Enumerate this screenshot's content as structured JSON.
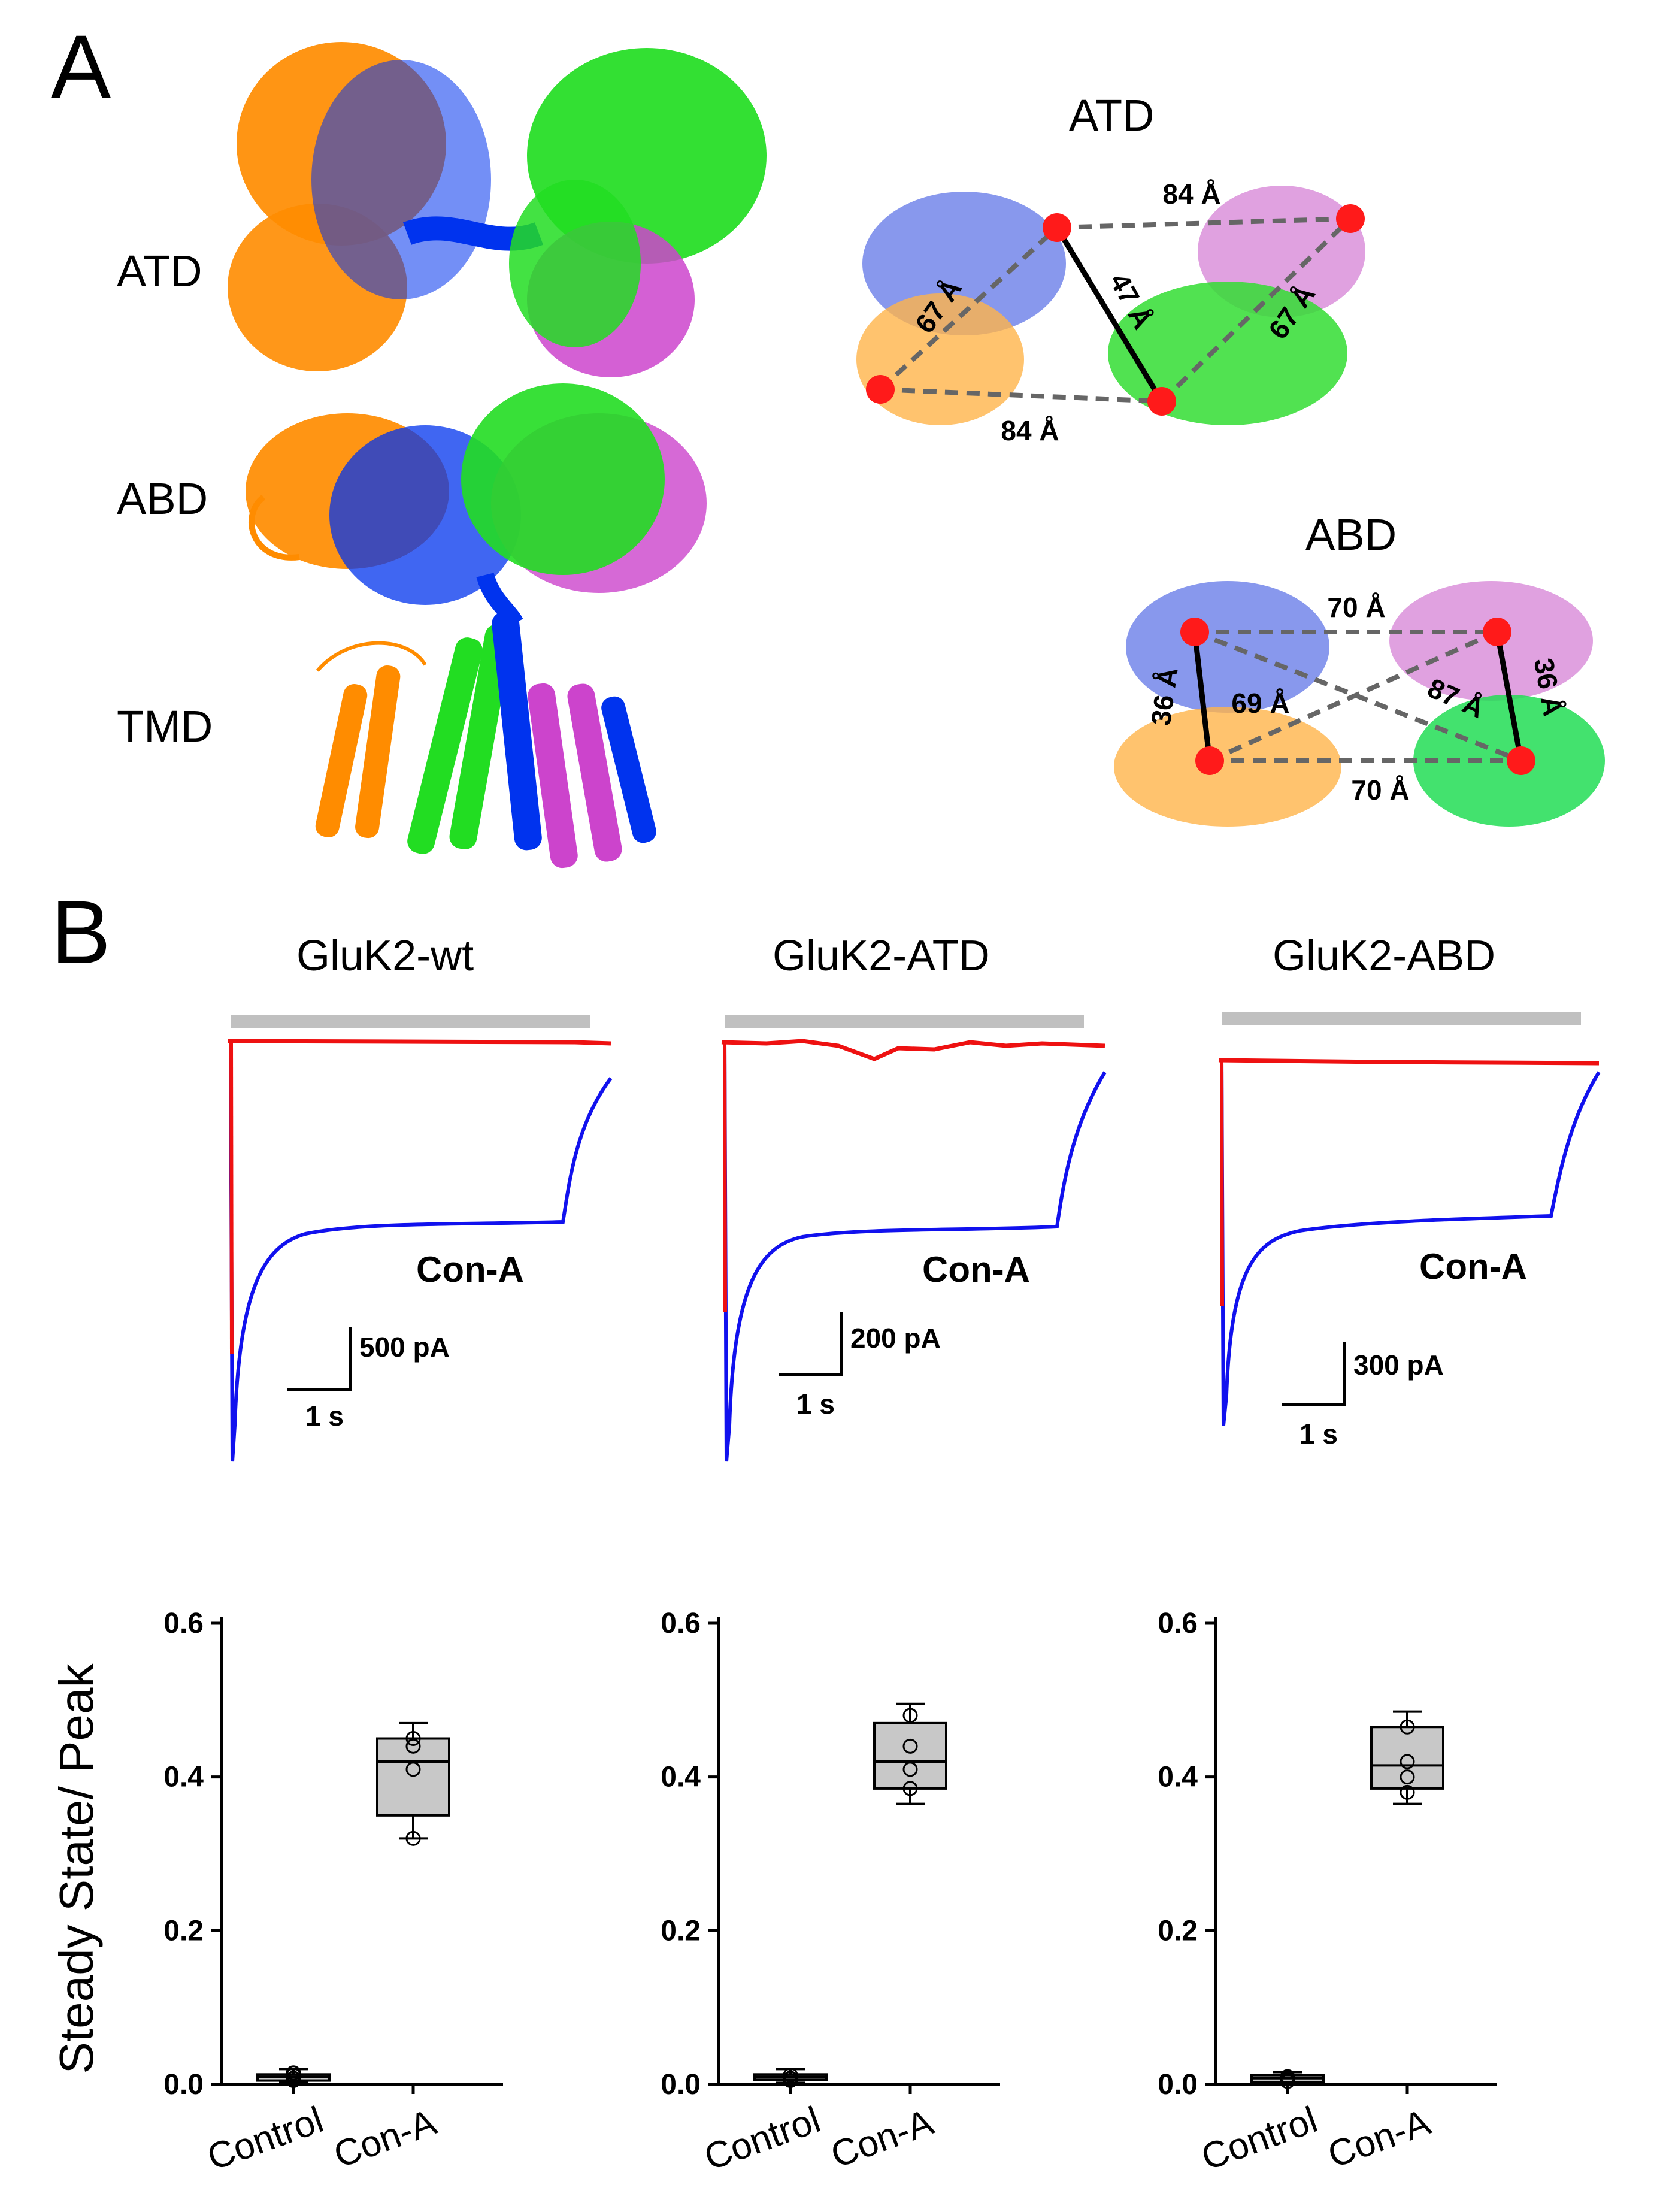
{
  "figure": {
    "panel_a_label": "A",
    "panel_b_label": "B",
    "domain_labels": [
      "ATD",
      "ABD",
      "TMD"
    ],
    "atd_schematic": {
      "title": "ATD",
      "distances": {
        "top": "84 Å",
        "bottom": "84 Å",
        "left": "67 Å",
        "right": "67 Å",
        "diagonal": "47 Å"
      }
    },
    "abd_schematic": {
      "title": "ABD",
      "distances": {
        "top": "70 Å",
        "bottom": "70 Å",
        "left": "36 Å",
        "right": "36 Å",
        "diag1": "69 Å",
        "diag2": "87 Å"
      }
    },
    "traces": [
      {
        "title": "GluK2-wt",
        "treatment": "Con-A",
        "scale_y": "500 pA",
        "scale_x": "1 s"
      },
      {
        "title": "GluK2-ATD",
        "treatment": "Con-A",
        "scale_y": "200 pA",
        "scale_x": "1 s"
      },
      {
        "title": "GluK2-ABD",
        "treatment": "Con-A",
        "scale_y": "300 pA",
        "scale_x": "1 s"
      }
    ],
    "colors": {
      "chain_a": "#ff8c00",
      "chain_b": "#0033ee",
      "chain_c": "#22dd22",
      "chain_d": "#cc44cc",
      "control_trace": "#ee1111",
      "cona_trace": "#1111ee",
      "agonist_bar": "#c0c0c0",
      "box_fill": "#c8c8c8"
    }
  },
  "chart_data": [
    {
      "type": "box",
      "ylabel": "Steady State/ Peak",
      "ylim": [
        0,
        0.6
      ],
      "yticks": [
        "0.0",
        "0.2",
        "0.4",
        "0.6"
      ],
      "categories": [
        "Control",
        "Con-A"
      ],
      "groups": [
        {
          "name": "Control",
          "q1": 0.005,
          "median": 0.01,
          "q3": 0.013,
          "whisker_low": 0.002,
          "whisker_high": 0.02,
          "points": [
            0.005,
            0.008,
            0.012,
            0.015
          ]
        },
        {
          "name": "Con-A",
          "q1": 0.35,
          "median": 0.42,
          "q3": 0.45,
          "whisker_low": 0.32,
          "whisker_high": 0.47,
          "points": [
            0.32,
            0.41,
            0.44,
            0.45
          ]
        }
      ]
    },
    {
      "type": "box",
      "ylabel": "",
      "ylim": [
        0,
        0.6
      ],
      "yticks": [
        "0.0",
        "0.2",
        "0.4",
        "0.6"
      ],
      "categories": [
        "Control",
        "Con-A"
      ],
      "groups": [
        {
          "name": "Control",
          "q1": 0.006,
          "median": 0.01,
          "q3": 0.013,
          "whisker_low": 0.002,
          "whisker_high": 0.02,
          "points": [
            0.005,
            0.008,
            0.012
          ]
        },
        {
          "name": "Con-A",
          "q1": 0.385,
          "median": 0.42,
          "q3": 0.47,
          "whisker_low": 0.365,
          "whisker_high": 0.495,
          "points": [
            0.385,
            0.41,
            0.44,
            0.48
          ]
        }
      ]
    },
    {
      "type": "box",
      "ylabel": "",
      "ylim": [
        0,
        0.6
      ],
      "yticks": [
        "0.0",
        "0.2",
        "0.4",
        "0.6"
      ],
      "categories": [
        "Control",
        "Con-A"
      ],
      "groups": [
        {
          "name": "Control",
          "q1": 0.003,
          "median": 0.008,
          "q3": 0.012,
          "whisker_low": 0.001,
          "whisker_high": 0.016,
          "points": [
            0.004,
            0.007,
            0.01
          ]
        },
        {
          "name": "Con-A",
          "q1": 0.385,
          "median": 0.415,
          "q3": 0.465,
          "whisker_low": 0.365,
          "whisker_high": 0.485,
          "points": [
            0.38,
            0.4,
            0.42,
            0.465
          ]
        }
      ]
    }
  ]
}
